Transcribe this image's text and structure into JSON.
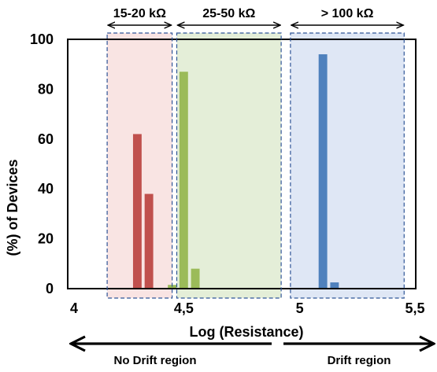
{
  "chart_data": {
    "type": "bar",
    "title": "",
    "xlabel": "Log (Resistance)",
    "ylabel": "(%) of Devices",
    "xlim": [
      4,
      5.5
    ],
    "ylim": [
      0,
      100
    ],
    "x_ticks": [
      {
        "value": 4,
        "label": "4"
      },
      {
        "value": 4.5,
        "label": "4,5"
      },
      {
        "value": 5,
        "label": "5"
      },
      {
        "value": 5.5,
        "label": "5,5"
      }
    ],
    "y_ticks": [
      {
        "value": 0,
        "label": "0"
      },
      {
        "value": 20,
        "label": "20"
      },
      {
        "value": 40,
        "label": "40"
      },
      {
        "value": 60,
        "label": "60"
      },
      {
        "value": 80,
        "label": "80"
      },
      {
        "value": 100,
        "label": "100"
      }
    ],
    "grid": false,
    "bar_width": 0.037,
    "regions": [
      {
        "label": "15-20 kΩ",
        "x_start": 4.17,
        "x_end": 4.45,
        "fill": "#f9e4e3",
        "border": "#2f5597"
      },
      {
        "label": "25-50 kΩ",
        "x_start": 4.47,
        "x_end": 4.92,
        "fill": "#e4eed8",
        "border": "#2f5597"
      },
      {
        "label": "> 100 kΩ",
        "x_start": 4.96,
        "x_end": 5.45,
        "fill": "#dfe7f5",
        "border": "#2f5597"
      }
    ],
    "series": [
      {
        "color": "#c0504d",
        "points": [
          {
            "x": 4.2,
            "y": 0.3
          },
          {
            "x": 4.24,
            "y": 0.3
          },
          {
            "x": 4.3,
            "y": 62
          },
          {
            "x": 4.35,
            "y": 38
          },
          {
            "x": 4.4,
            "y": 0.3
          }
        ]
      },
      {
        "color": "#9bbb59",
        "points": [
          {
            "x": 4.45,
            "y": 1.5
          },
          {
            "x": 4.5,
            "y": 87
          },
          {
            "x": 4.55,
            "y": 8
          },
          {
            "x": 4.6,
            "y": 0.3
          },
          {
            "x": 4.65,
            "y": 0.3
          }
        ]
      },
      {
        "color": "#4f81bd",
        "points": [
          {
            "x": 5.05,
            "y": 0.3
          },
          {
            "x": 5.1,
            "y": 94
          },
          {
            "x": 5.15,
            "y": 2.5
          }
        ]
      }
    ]
  },
  "annotations": {
    "left_arrow_label": "No Drift region",
    "right_arrow_label": "Drift region"
  }
}
